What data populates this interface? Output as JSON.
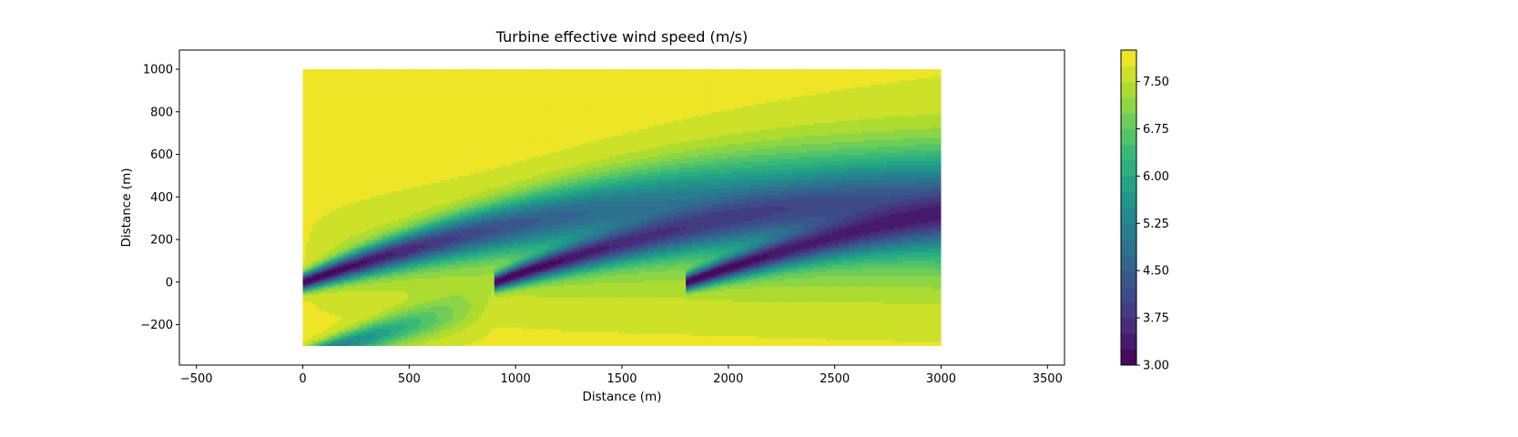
{
  "chart_data": {
    "type": "heatmap",
    "title": "Turbine effective wind speed (m/s)",
    "xlabel": "Distance (m)",
    "ylabel": "Distance (m)",
    "xlim": [
      -580,
      3580
    ],
    "ylim": [
      -390,
      1090
    ],
    "xticks": [
      -500,
      0,
      500,
      1000,
      1500,
      2000,
      2500,
      3000,
      3500
    ],
    "xtick_labels": [
      "−500",
      "0",
      "500",
      "1000",
      "1500",
      "2000",
      "2500",
      "3000",
      "3500"
    ],
    "yticks": [
      -200,
      0,
      200,
      400,
      600,
      800,
      1000
    ],
    "ytick_labels": [
      "−200",
      "0",
      "200",
      "400",
      "600",
      "800",
      "1000"
    ],
    "domain_x": [
      0,
      3000
    ],
    "domain_y": [
      -300,
      1000
    ],
    "free_stream_speed": 7.8,
    "turbines": [
      {
        "x": 0,
        "y": 0
      },
      {
        "x": 900,
        "y": 0
      },
      {
        "x": 1800,
        "y": 0
      }
    ],
    "colorbar": {
      "colormap": "viridis",
      "min": 3.0,
      "max": 8.0,
      "levels": 20,
      "ticks": [
        3.0,
        3.75,
        4.5,
        5.25,
        6.0,
        6.75,
        7.5
      ],
      "tick_labels": [
        "3.00",
        "3.75",
        "4.50",
        "5.25",
        "6.00",
        "6.75",
        "7.50"
      ]
    },
    "grid": false,
    "legend": "none"
  }
}
